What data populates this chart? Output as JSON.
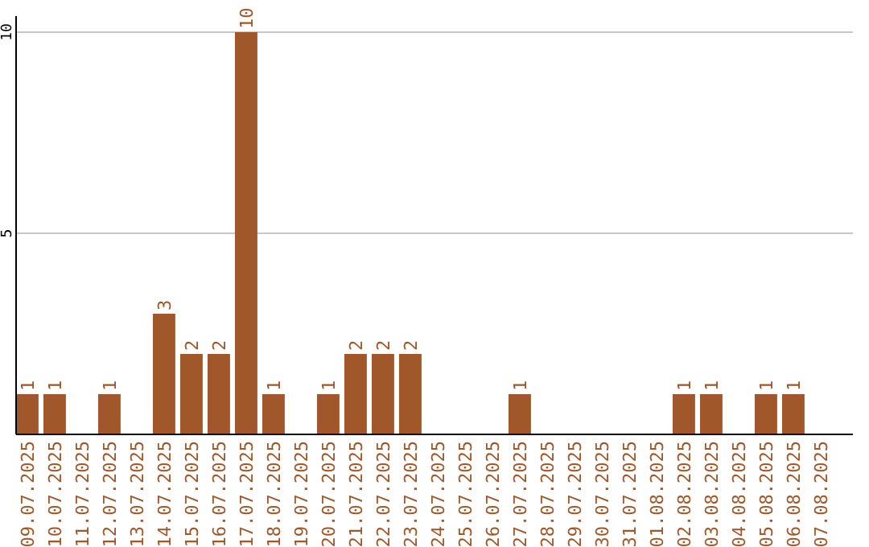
{
  "chart_data": {
    "type": "bar",
    "categories": [
      "09.07.2025",
      "10.07.2025",
      "11.07.2025",
      "12.07.2025",
      "13.07.2025",
      "14.07.2025",
      "15.07.2025",
      "16.07.2025",
      "17.07.2025",
      "18.07.2025",
      "19.07.2025",
      "20.07.2025",
      "21.07.2025",
      "22.07.2025",
      "23.07.2025",
      "24.07.2025",
      "25.07.2025",
      "26.07.2025",
      "27.07.2025",
      "28.07.2025",
      "29.07.2025",
      "30.07.2025",
      "31.07.2025",
      "01.08.2025",
      "02.08.2025",
      "03.08.2025",
      "04.08.2025",
      "05.08.2025",
      "06.08.2025",
      "07.08.2025"
    ],
    "values": [
      1,
      1,
      0,
      1,
      0,
      3,
      2,
      2,
      10,
      1,
      0,
      1,
      2,
      2,
      2,
      0,
      0,
      0,
      1,
      0,
      0,
      0,
      0,
      0,
      1,
      1,
      0,
      1,
      1,
      0
    ],
    "value_labels": [
      "1",
      "1",
      null,
      "1",
      null,
      "3",
      "2",
      "2",
      "10",
      "1",
      null,
      "1",
      "2",
      "2",
      "2",
      null,
      null,
      null,
      "1",
      null,
      null,
      null,
      null,
      null,
      "1",
      "1",
      null,
      "1",
      "1",
      null
    ],
    "color": "#a0572a",
    "ylim": [
      0,
      10.4
    ],
    "yticks": [
      5,
      10
    ],
    "grid": "y"
  }
}
